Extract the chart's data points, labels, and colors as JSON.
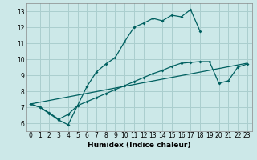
{
  "xlabel": "Humidex (Indice chaleur)",
  "bg_color": "#cce8e8",
  "line_color": "#006060",
  "grid_color": "#aacece",
  "xlim": [
    -0.5,
    23.5
  ],
  "ylim": [
    5.5,
    13.5
  ],
  "xtick_labels": [
    "0",
    "1",
    "2",
    "3",
    "4",
    "5",
    "6",
    "7",
    "8",
    "9",
    "10",
    "11",
    "12",
    "13",
    "14",
    "15",
    "16",
    "17",
    "18",
    "19",
    "20",
    "21",
    "22",
    "23"
  ],
  "xticks": [
    0,
    1,
    2,
    3,
    4,
    5,
    6,
    7,
    8,
    9,
    10,
    11,
    12,
    13,
    14,
    15,
    16,
    17,
    18,
    19,
    20,
    21,
    22,
    23
  ],
  "yticks": [
    6,
    7,
    8,
    9,
    10,
    11,
    12,
    13
  ],
  "line1_x": [
    0,
    1,
    2,
    3,
    4,
    5,
    6,
    7,
    8,
    9,
    10,
    11,
    12,
    13,
    14,
    15,
    16,
    17,
    18
  ],
  "line1_y": [
    7.2,
    7.0,
    6.6,
    6.2,
    5.9,
    7.1,
    8.3,
    9.2,
    9.7,
    10.1,
    11.1,
    12.0,
    12.25,
    12.55,
    12.4,
    12.75,
    12.65,
    13.1,
    11.75
  ],
  "line2_x": [
    0,
    1,
    2,
    3,
    4,
    5,
    6,
    7,
    8,
    9,
    10,
    11,
    12,
    13,
    14,
    15,
    16,
    17,
    18,
    19,
    20,
    21,
    22,
    23
  ],
  "line2_y": [
    7.2,
    7.0,
    6.65,
    6.25,
    6.55,
    7.1,
    7.35,
    7.6,
    7.85,
    8.1,
    8.35,
    8.6,
    8.85,
    9.1,
    9.3,
    9.55,
    9.75,
    9.8,
    9.85,
    9.85,
    8.5,
    8.65,
    9.5,
    9.7
  ],
  "line3_x": [
    0,
    23
  ],
  "line3_y": [
    7.2,
    9.75
  ]
}
